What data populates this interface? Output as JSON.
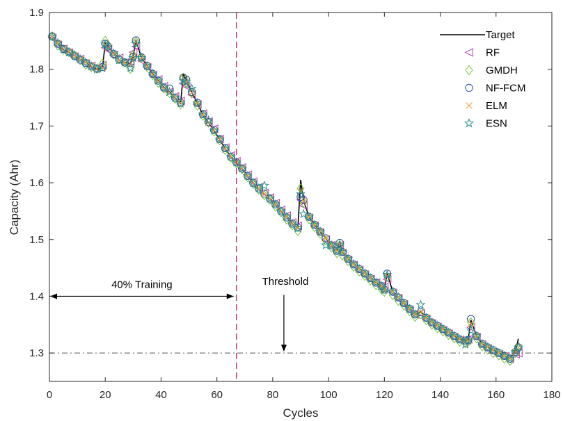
{
  "chart_data": {
    "type": "line",
    "xlabel": "Cycles",
    "ylabel": "Capacity (Ahr)",
    "xlim": [
      0,
      180
    ],
    "ylim": [
      1.25,
      1.9
    ],
    "xticks": [
      0,
      20,
      40,
      60,
      80,
      100,
      120,
      140,
      160,
      180
    ],
    "yticks": [
      1.3,
      1.4,
      1.5,
      1.6,
      1.7,
      1.8,
      1.9
    ],
    "xtick_labels": [
      "0",
      "20",
      "40",
      "60",
      "80",
      "100",
      "120",
      "140",
      "160",
      "180"
    ],
    "ytick_labels": [
      "1.3",
      "1.4",
      "1.5",
      "1.6",
      "1.7",
      "1.8",
      "1.9"
    ],
    "grid": false,
    "legend_position": "top-right",
    "threshold": 1.3,
    "training_split_x": 67,
    "annotations": {
      "training": "40% Training",
      "threshold": "Threshold"
    },
    "colors": {
      "Target": "#000000",
      "RF": "#b347b3",
      "GMDH": "#77c23a",
      "NF-FCM": "#1f4e99",
      "ELM": "#f0a030",
      "ESN": "#2a8f8f",
      "split": "#b0143c",
      "threshold": "#555555"
    },
    "x": [
      1,
      3,
      5,
      7,
      9,
      11,
      13,
      15,
      17,
      19,
      20,
      21,
      23,
      25,
      27,
      29,
      30,
      31,
      33,
      35,
      37,
      39,
      41,
      43,
      45,
      47,
      48,
      49,
      51,
      53,
      55,
      57,
      59,
      61,
      63,
      65,
      67,
      69,
      71,
      73,
      75,
      77,
      79,
      81,
      83,
      85,
      87,
      89,
      90,
      91,
      93,
      95,
      97,
      99,
      101,
      103,
      104,
      105,
      107,
      109,
      111,
      113,
      115,
      117,
      119,
      120,
      121,
      123,
      125,
      127,
      129,
      131,
      133,
      135,
      137,
      139,
      141,
      143,
      145,
      147,
      149,
      150,
      151,
      153,
      155,
      157,
      159,
      161,
      163,
      165,
      167,
      168
    ],
    "series": [
      {
        "name": "Target",
        "marker": "line",
        "values": [
          1.857,
          1.846,
          1.835,
          1.83,
          1.824,
          1.818,
          1.812,
          1.805,
          1.8,
          1.802,
          1.846,
          1.84,
          1.828,
          1.816,
          1.812,
          1.81,
          1.822,
          1.851,
          1.82,
          1.806,
          1.792,
          1.78,
          1.768,
          1.76,
          1.75,
          1.74,
          1.793,
          1.78,
          1.76,
          1.74,
          1.72,
          1.706,
          1.692,
          1.676,
          1.66,
          1.646,
          1.636,
          1.625,
          1.612,
          1.6,
          1.59,
          1.58,
          1.572,
          1.562,
          1.55,
          1.54,
          1.528,
          1.52,
          1.605,
          1.57,
          1.54,
          1.526,
          1.514,
          1.502,
          1.49,
          1.48,
          1.495,
          1.478,
          1.466,
          1.456,
          1.448,
          1.44,
          1.432,
          1.424,
          1.418,
          1.41,
          1.44,
          1.408,
          1.398,
          1.388,
          1.378,
          1.368,
          1.372,
          1.362,
          1.354,
          1.348,
          1.342,
          1.336,
          1.33,
          1.324,
          1.322,
          1.322,
          1.358,
          1.33,
          1.316,
          1.31,
          1.305,
          1.3,
          1.295,
          1.29,
          1.305,
          1.325
        ]
      },
      {
        "name": "RF",
        "marker": "triangle-left",
        "values": [
          1.855,
          1.843,
          1.836,
          1.829,
          1.822,
          1.818,
          1.81,
          1.806,
          1.802,
          1.807,
          1.838,
          1.834,
          1.825,
          1.82,
          1.812,
          1.814,
          1.83,
          1.84,
          1.815,
          1.804,
          1.79,
          1.782,
          1.77,
          1.76,
          1.752,
          1.744,
          1.775,
          1.77,
          1.755,
          1.738,
          1.722,
          1.708,
          1.695,
          1.677,
          1.662,
          1.648,
          1.638,
          1.627,
          1.614,
          1.602,
          1.592,
          1.582,
          1.574,
          1.564,
          1.552,
          1.542,
          1.53,
          1.524,
          1.57,
          1.56,
          1.538,
          1.524,
          1.512,
          1.5,
          1.49,
          1.48,
          1.49,
          1.476,
          1.464,
          1.455,
          1.446,
          1.438,
          1.43,
          1.424,
          1.418,
          1.416,
          1.43,
          1.406,
          1.396,
          1.386,
          1.376,
          1.368,
          1.37,
          1.36,
          1.352,
          1.346,
          1.34,
          1.334,
          1.328,
          1.323,
          1.322,
          1.324,
          1.345,
          1.328,
          1.315,
          1.308,
          1.302,
          1.298,
          1.294,
          1.29,
          1.298,
          1.3
        ]
      },
      {
        "name": "GMDH",
        "marker": "diamond",
        "values": [
          1.858,
          1.842,
          1.834,
          1.83,
          1.825,
          1.816,
          1.808,
          1.804,
          1.801,
          1.81,
          1.85,
          1.842,
          1.826,
          1.818,
          1.812,
          1.801,
          1.825,
          1.848,
          1.82,
          1.804,
          1.79,
          1.776,
          1.766,
          1.758,
          1.748,
          1.738,
          1.785,
          1.775,
          1.758,
          1.736,
          1.718,
          1.706,
          1.69,
          1.675,
          1.658,
          1.644,
          1.634,
          1.624,
          1.61,
          1.598,
          1.588,
          1.578,
          1.57,
          1.558,
          1.548,
          1.535,
          1.525,
          1.515,
          1.59,
          1.565,
          1.536,
          1.522,
          1.51,
          1.498,
          1.486,
          1.476,
          1.49,
          1.472,
          1.462,
          1.452,
          1.444,
          1.436,
          1.428,
          1.42,
          1.412,
          1.408,
          1.435,
          1.402,
          1.392,
          1.384,
          1.374,
          1.364,
          1.368,
          1.358,
          1.35,
          1.344,
          1.338,
          1.332,
          1.326,
          1.32,
          1.318,
          1.32,
          1.354,
          1.326,
          1.312,
          1.306,
          1.3,
          1.296,
          1.29,
          1.286,
          1.3,
          1.31
        ]
      },
      {
        "name": "NF-FCM",
        "marker": "circle",
        "values": [
          1.858,
          1.845,
          1.836,
          1.83,
          1.823,
          1.817,
          1.811,
          1.805,
          1.801,
          1.804,
          1.845,
          1.84,
          1.827,
          1.817,
          1.812,
          1.811,
          1.822,
          1.851,
          1.821,
          1.806,
          1.792,
          1.78,
          1.768,
          1.766,
          1.75,
          1.741,
          1.785,
          1.782,
          1.76,
          1.741,
          1.721,
          1.707,
          1.693,
          1.677,
          1.661,
          1.646,
          1.636,
          1.625,
          1.612,
          1.6,
          1.59,
          1.581,
          1.572,
          1.562,
          1.55,
          1.539,
          1.528,
          1.521,
          1.575,
          1.57,
          1.54,
          1.526,
          1.514,
          1.502,
          1.49,
          1.48,
          1.494,
          1.478,
          1.466,
          1.456,
          1.448,
          1.44,
          1.432,
          1.424,
          1.418,
          1.412,
          1.44,
          1.408,
          1.398,
          1.388,
          1.378,
          1.368,
          1.372,
          1.362,
          1.354,
          1.348,
          1.342,
          1.336,
          1.33,
          1.324,
          1.322,
          1.323,
          1.36,
          1.33,
          1.316,
          1.31,
          1.305,
          1.3,
          1.295,
          1.29,
          1.302,
          1.31
        ]
      },
      {
        "name": "ELM",
        "marker": "x",
        "values": [
          1.856,
          1.846,
          1.836,
          1.831,
          1.824,
          1.818,
          1.812,
          1.806,
          1.801,
          1.803,
          1.843,
          1.838,
          1.827,
          1.815,
          1.811,
          1.81,
          1.823,
          1.848,
          1.82,
          1.805,
          1.791,
          1.779,
          1.767,
          1.759,
          1.75,
          1.741,
          1.785,
          1.778,
          1.759,
          1.74,
          1.72,
          1.706,
          1.692,
          1.676,
          1.66,
          1.646,
          1.636,
          1.625,
          1.612,
          1.6,
          1.59,
          1.58,
          1.572,
          1.562,
          1.55,
          1.54,
          1.528,
          1.52,
          1.585,
          1.568,
          1.54,
          1.526,
          1.514,
          1.502,
          1.49,
          1.48,
          1.492,
          1.478,
          1.466,
          1.456,
          1.448,
          1.44,
          1.432,
          1.424,
          1.418,
          1.411,
          1.436,
          1.408,
          1.398,
          1.388,
          1.378,
          1.368,
          1.371,
          1.362,
          1.354,
          1.348,
          1.342,
          1.336,
          1.33,
          1.324,
          1.322,
          1.322,
          1.352,
          1.33,
          1.316,
          1.31,
          1.305,
          1.3,
          1.295,
          1.29,
          1.302,
          1.31
        ]
      },
      {
        "name": "ESN",
        "marker": "star",
        "values": [
          1.857,
          1.846,
          1.835,
          1.83,
          1.824,
          1.818,
          1.812,
          1.805,
          1.8,
          1.802,
          1.844,
          1.84,
          1.828,
          1.816,
          1.812,
          1.802,
          1.82,
          1.845,
          1.82,
          1.806,
          1.792,
          1.78,
          1.768,
          1.76,
          1.75,
          1.74,
          1.78,
          1.778,
          1.766,
          1.74,
          1.72,
          1.71,
          1.692,
          1.676,
          1.66,
          1.646,
          1.636,
          1.625,
          1.612,
          1.6,
          1.59,
          1.595,
          1.572,
          1.562,
          1.55,
          1.54,
          1.528,
          1.52,
          1.58,
          1.545,
          1.54,
          1.526,
          1.514,
          1.49,
          1.49,
          1.48,
          1.49,
          1.478,
          1.466,
          1.456,
          1.448,
          1.44,
          1.432,
          1.424,
          1.418,
          1.412,
          1.438,
          1.408,
          1.398,
          1.388,
          1.378,
          1.368,
          1.385,
          1.362,
          1.354,
          1.348,
          1.342,
          1.336,
          1.33,
          1.324,
          1.315,
          1.322,
          1.34,
          1.33,
          1.316,
          1.31,
          1.305,
          1.3,
          1.295,
          1.29,
          1.302,
          1.31
        ]
      }
    ]
  }
}
